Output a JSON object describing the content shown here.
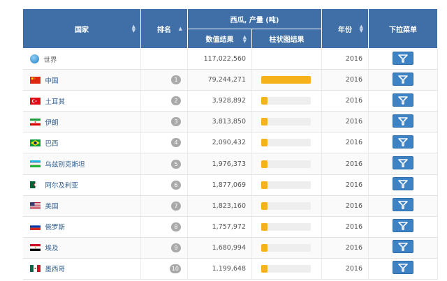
{
  "header": {
    "country": "国家",
    "rank": "排名",
    "group_title": "西瓜, 产量 (吨)",
    "value_col": "数值结果",
    "bar_col": "柱状图结果",
    "year": "年份",
    "dropdown": "下拉菜单"
  },
  "colors": {
    "header_bg": "#3f6fa6",
    "bar": "#f5b21a",
    "menu_button": "#3d82c4",
    "badge": "#a9a9a9"
  },
  "world": {
    "name": "世界",
    "value": "117,022,560",
    "year": "2016",
    "icon": "globe-icon"
  },
  "rows": [
    {
      "rank": "1",
      "name": "中国",
      "value": "79,244,271",
      "year": "2016",
      "fraction": 1.0,
      "flag": "china"
    },
    {
      "rank": "2",
      "name": "土耳其",
      "value": "3,928,892",
      "year": "2016",
      "fraction": 0.13,
      "flag": "turkey"
    },
    {
      "rank": "3",
      "name": "伊朗",
      "value": "3,813,850",
      "year": "2016",
      "fraction": 0.13,
      "flag": "iran"
    },
    {
      "rank": "4",
      "name": "巴西",
      "value": "2,090,432",
      "year": "2016",
      "fraction": 0.13,
      "flag": "brazil"
    },
    {
      "rank": "5",
      "name": "乌兹别克斯坦",
      "value": "1,976,373",
      "year": "2016",
      "fraction": 0.13,
      "flag": "uzbekistan"
    },
    {
      "rank": "6",
      "name": "阿尔及利亚",
      "value": "1,877,069",
      "year": "2016",
      "fraction": 0.13,
      "flag": "algeria"
    },
    {
      "rank": "7",
      "name": "美国",
      "value": "1,823,160",
      "year": "2016",
      "fraction": 0.13,
      "flag": "usa"
    },
    {
      "rank": "8",
      "name": "俄罗斯",
      "value": "1,757,972",
      "year": "2016",
      "fraction": 0.13,
      "flag": "russia"
    },
    {
      "rank": "9",
      "name": "埃及",
      "value": "1,680,994",
      "year": "2016",
      "fraction": 0.13,
      "flag": "egypt"
    },
    {
      "rank": "10",
      "name": "墨西哥",
      "value": "1,199,648",
      "year": "2016",
      "fraction": 0.13,
      "flag": "mexico"
    }
  ]
}
